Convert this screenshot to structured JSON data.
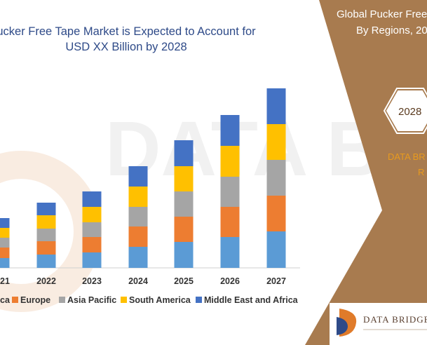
{
  "header": {
    "title_line1": "ucker Free Tape Market is Expected to Account for",
    "title_line2": "USD XX Billion by 2028"
  },
  "side_panel": {
    "title_line1": "Global Pucker Free",
    "title_line2": "By Regions, 20",
    "year_badge": "2028",
    "brand_line1": "DATA BR",
    "brand_line2": "R"
  },
  "logo": {
    "text": "DATA BRIDGE"
  },
  "watermark": {
    "text": "DATA BRIDGE"
  },
  "colors": {
    "panel": "#a87b4f",
    "north_america": "#5b9bd5",
    "europe": "#ed7d31",
    "asia_pacific": "#a5a5a5",
    "south_america": "#ffc000",
    "middle_east_africa": "#4472c4"
  },
  "chart_data": {
    "type": "bar",
    "stacked": true,
    "categories": [
      "21",
      "2022",
      "2023",
      "2024",
      "2025",
      "2026",
      "2027"
    ],
    "series": [
      {
        "name": "ca",
        "color": "#5b9bd5",
        "values": [
          14,
          19,
          22,
          30,
          37,
          44,
          52
        ]
      },
      {
        "name": "Europe",
        "color": "#ed7d31",
        "values": [
          15,
          19,
          22,
          29,
          36,
          43,
          51
        ]
      },
      {
        "name": "Asia Pacific",
        "color": "#a5a5a5",
        "values": [
          14,
          18,
          21,
          28,
          36,
          43,
          51
        ]
      },
      {
        "name": "South America",
        "color": "#ffc000",
        "values": [
          14,
          19,
          22,
          29,
          36,
          44,
          51
        ]
      },
      {
        "name": "Middle East and Africa",
        "color": "#4472c4",
        "values": [
          14,
          18,
          22,
          29,
          37,
          44,
          51
        ]
      }
    ],
    "legend_position": "bottom",
    "grid": false
  }
}
